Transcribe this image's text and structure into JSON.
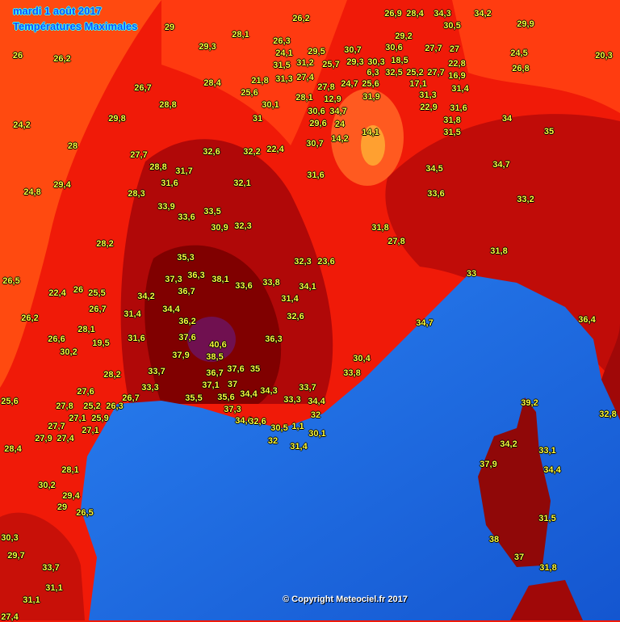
{
  "header": {
    "date": "mardi 1 août 2017",
    "title": "Températures Maximales"
  },
  "copyright": "© Copyright Meteociel.fr 2017",
  "colors": {
    "land_hot": "#f01a08",
    "land_warm": "#ff4a10",
    "land_very_hot": "#b00808",
    "land_extreme": "#780000",
    "land_max": "#701050",
    "sea": "#1e6ee6",
    "label": "#ffff3c"
  },
  "stations": [
    "29",
    "28,1",
    "26",
    "26,2",
    "29,3",
    "26,7",
    "28,4",
    "28,8",
    "29,8",
    "24,2",
    "28",
    "27,7",
    "32,6",
    "32,2",
    "22,4",
    "31",
    "28,8",
    "31,7",
    "31,6",
    "32,1",
    "29,4",
    "24,8",
    "28,3",
    "33,9",
    "33,6",
    "33,5",
    "30,9",
    "32,3",
    "28,2",
    "35,3",
    "37,3",
    "36,3",
    "38,1",
    "33,6",
    "33,8",
    "34,1",
    "32,3",
    "23,6",
    "26,5",
    "22,4",
    "26",
    "25,5",
    "34,2",
    "36,7",
    "31,4",
    "26,7",
    "31,4",
    "34,4",
    "36,2",
    "32,6",
    "26,2",
    "28,1",
    "19,5",
    "31,6",
    "37,6",
    "40,6",
    "36,3",
    "26,6",
    "30,2",
    "37,9",
    "38,5",
    "33,7",
    "36,7",
    "37,6",
    "35",
    "28,2",
    "37,1",
    "37",
    "33,3",
    "34,3",
    "33,7",
    "27,6",
    "26,7",
    "35,5",
    "35,6",
    "34,4",
    "33,3",
    "34,4",
    "37,3",
    "25,6",
    "27,8",
    "26,3",
    "25,2",
    "25,9",
    "27,1",
    "34,6",
    "32",
    "32,6",
    "30,5",
    "1,1",
    "27,7",
    "27,4",
    "27,9",
    "27,1",
    "32",
    "30,1",
    "31,4",
    "28,4",
    "28,1",
    "30,2",
    "29,4",
    "29",
    "26,5",
    "30,3",
    "29,7",
    "33,7",
    "31,1",
    "31,1",
    "27,4",
    "34",
    "35",
    "34,5",
    "34,7",
    "33,6",
    "33,2",
    "31,8",
    "27,8",
    "31,8",
    "33",
    "36,4",
    "34,7",
    "30,4",
    "33,8",
    "39,2",
    "32,8",
    "34,2",
    "33,1",
    "37,9",
    "34,4",
    "31,5",
    "38",
    "37",
    "31,8",
    "31,6",
    "30,7",
    "14,2",
    "20,3",
    "24,5",
    "26,8",
    "29,9",
    "26,2",
    "26,3",
    "31,5",
    "24,1",
    "29,5",
    "31,2",
    "25,7",
    "30,7",
    "29,3",
    "30,3",
    "32,5",
    "18,5",
    "22,8",
    "27,7",
    "27",
    "30,5",
    "34,3",
    "34,2",
    "28,4",
    "26,9",
    "29,2",
    "30,6",
    "24,7",
    "25,6",
    "27,4",
    "27,8",
    "21,8",
    "25,6",
    "30,1",
    "31,3",
    "28,1",
    "31,3",
    "31,4",
    "22,9",
    "31,6",
    "31,9",
    "12,9",
    "34,7",
    "30,6",
    "29,6",
    "24",
    "14,1",
    "31,8",
    "31,5",
    "17,1",
    "16,9",
    "6,3",
    "25,2",
    "27,7"
  ]
}
